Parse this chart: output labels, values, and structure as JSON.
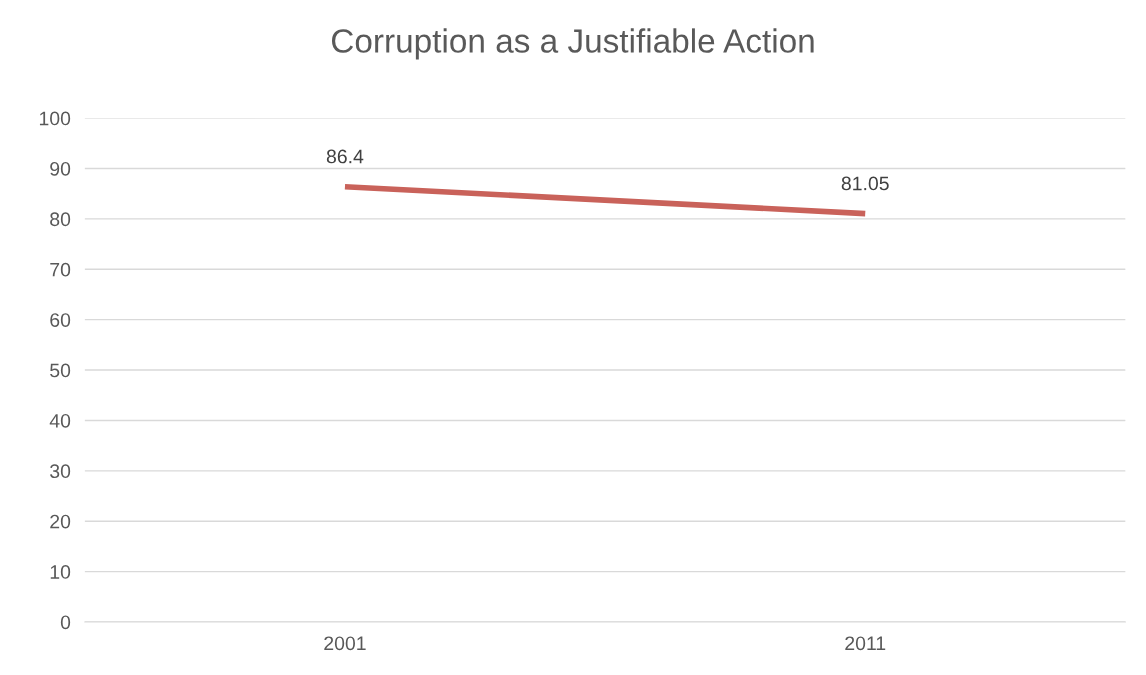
{
  "chart_data": {
    "type": "line",
    "title": "Corruption as a Justifiable Action",
    "categories": [
      "2001",
      "2011"
    ],
    "series": [
      {
        "color": "#c9625a",
        "values": [
          86.4,
          81.05
        ]
      }
    ],
    "ylim": [
      0,
      100
    ],
    "yticks": [
      0,
      10,
      20,
      30,
      40,
      50,
      60,
      70,
      80,
      90,
      100
    ],
    "grid": "y",
    "data_labels": true,
    "marker": "none",
    "line_style": "solid"
  }
}
